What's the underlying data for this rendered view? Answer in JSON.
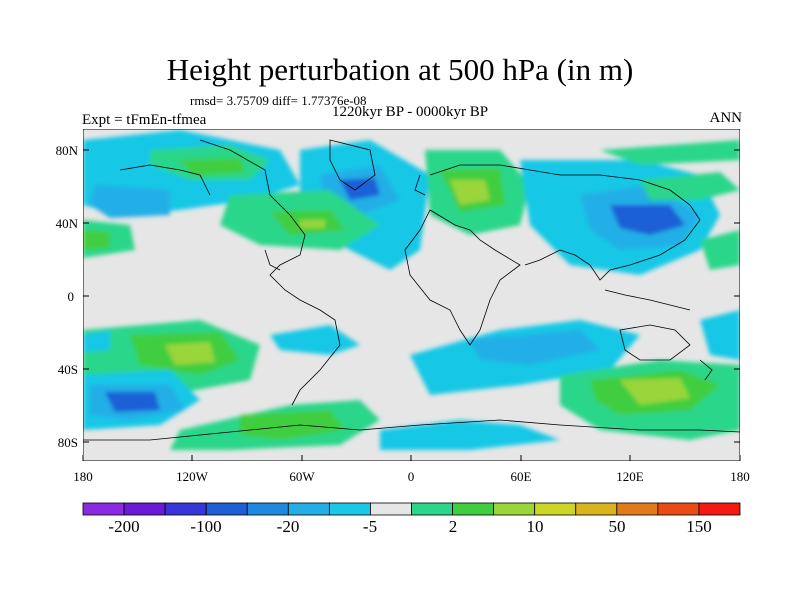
{
  "header": {
    "title": "Height perturbation at 500 hPa (in m)",
    "stats": "rmsd= 3.75709 diff= 1.77376e-08",
    "experiment": "Expt = tFmEn-tfmea",
    "period": "1220kyr BP - 0000kyr BP",
    "season": "ANN"
  },
  "axes": {
    "y_ticks": [
      "80N",
      "40N",
      "0",
      "40S",
      "80S"
    ],
    "x_ticks": [
      "180",
      "120W",
      "60W",
      "0",
      "60E",
      "120E",
      "180"
    ]
  },
  "colorbar": {
    "colors": [
      "#8a2be2",
      "#6a1bd6",
      "#3a35d8",
      "#1f5fd6",
      "#1e88e0",
      "#23aee6",
      "#19c8e6",
      "#e6e6e6",
      "#2bd68a",
      "#3fce3f",
      "#9ad63a",
      "#cdd626",
      "#dab41e",
      "#e07a1a",
      "#ea4a14",
      "#f41a14"
    ],
    "labels": [
      "-200",
      "-100",
      "-20",
      "-5",
      "2",
      "10",
      "50",
      "150"
    ]
  },
  "colors": {
    "ocean_bg": "#e6e6e6",
    "coast": "#000000"
  }
}
